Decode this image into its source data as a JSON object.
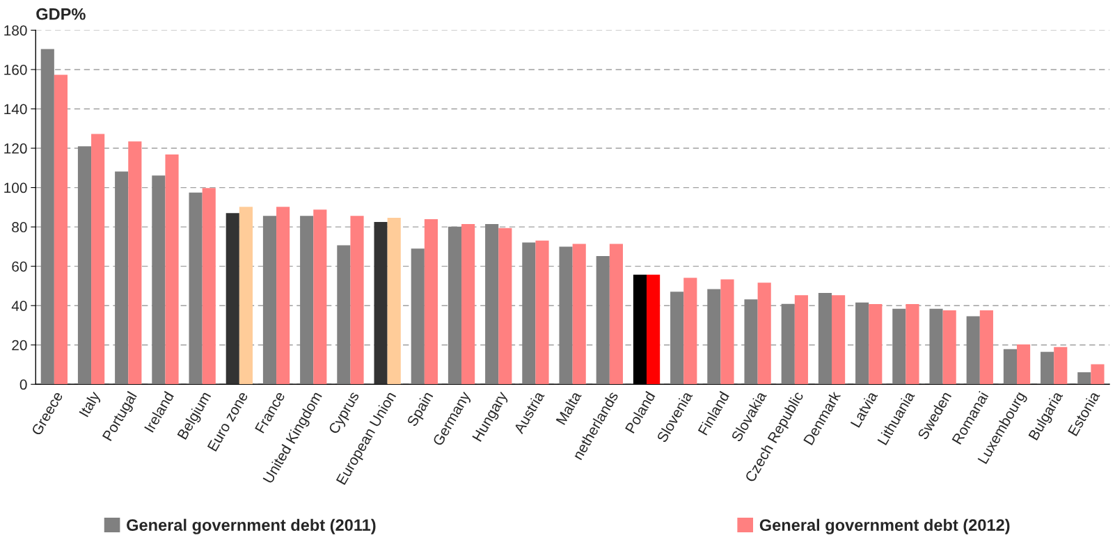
{
  "chart_data": {
    "type": "bar",
    "ylabel": "GDP%",
    "categories": [
      "Greece",
      "Italy",
      "Portugal",
      "Ireland",
      "Belgium",
      "Euro zone",
      "France",
      "United Kingdom",
      "Cyprus",
      "European Union",
      "Spain",
      "Germany",
      "Hungary",
      "Austria",
      "Malta",
      "netherlands",
      "Poland",
      "Slovenia",
      "Finland",
      "Slovakia",
      "Czech Republic",
      "Denmark",
      "Latvia",
      "Lithuania",
      "Sweden",
      "Romanai",
      "Luxembourg",
      "Bulgaria",
      "Estonia"
    ],
    "series": [
      {
        "name": "General government debt (2011)",
        "color": "#808080",
        "colors": [
          "#808080",
          "#808080",
          "#808080",
          "#808080",
          "#808080",
          "#333333",
          "#808080",
          "#808080",
          "#808080",
          "#333333",
          "#808080",
          "#808080",
          "#808080",
          "#808080",
          "#808080",
          "#808080",
          "#000000",
          "#808080",
          "#808080",
          "#808080",
          "#808080",
          "#808080",
          "#808080",
          "#808080",
          "#808080",
          "#808080",
          "#808080",
          "#808080",
          "#808080"
        ],
        "values": [
          170.4,
          121.0,
          108.2,
          106.1,
          97.5,
          87.0,
          85.6,
          85.6,
          70.7,
          82.5,
          69.0,
          80.1,
          81.5,
          72.1,
          70.0,
          65.2,
          55.7,
          47.1,
          48.4,
          43.2,
          40.9,
          46.4,
          41.6,
          38.4,
          38.4,
          34.6,
          17.9,
          16.5,
          6.1
        ]
      },
      {
        "name": "General government debt (2012)",
        "color": "#ff8080",
        "colors": [
          "#ff8080",
          "#ff8080",
          "#ff8080",
          "#ff8080",
          "#ff8080",
          "#ffcc99",
          "#ff8080",
          "#ff8080",
          "#ff8080",
          "#ffcc99",
          "#ff8080",
          "#ff8080",
          "#ff8080",
          "#ff8080",
          "#ff8080",
          "#ff8080",
          "#ff0000",
          "#ff8080",
          "#ff8080",
          "#ff8080",
          "#ff8080",
          "#ff8080",
          "#ff8080",
          "#ff8080",
          "#ff8080",
          "#ff8080",
          "#ff8080",
          "#ff8080",
          "#ff8080"
        ],
        "values": [
          157.3,
          127.3,
          123.5,
          116.8,
          99.8,
          90.2,
          90.2,
          88.8,
          85.6,
          84.6,
          83.9,
          81.5,
          79.4,
          73.1,
          71.4,
          71.4,
          55.7,
          54.1,
          53.3,
          51.7,
          45.3,
          45.3,
          40.8,
          40.8,
          37.6,
          37.6,
          20.3,
          18.9,
          10.2
        ]
      }
    ],
    "ylim": [
      0,
      180
    ],
    "yticks": [
      0,
      20,
      40,
      60,
      80,
      100,
      120,
      140,
      160,
      180
    ],
    "grid": "y",
    "legend": "bottom"
  }
}
